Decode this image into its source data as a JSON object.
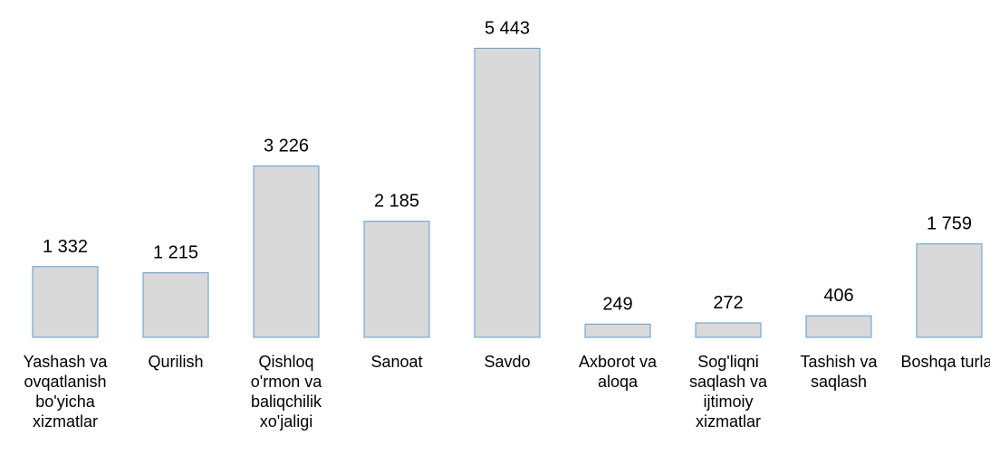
{
  "chart_data": {
    "type": "bar",
    "categories": [
      "Yashash va ovqatlanish bo'yicha xizmatlar",
      "Qurilish",
      "Qishloq o'rmon va baliqchilik xo'jaligi",
      "Sanoat",
      "Savdo",
      "Axborot va aloqa",
      "Sog'liqni saqlash va ijtimoiy xizmatlar",
      "Tashish va saqlash",
      "Boshqa turlar"
    ],
    "values": [
      1332,
      1215,
      3226,
      2185,
      5443,
      249,
      272,
      406,
      1759
    ],
    "value_labels": [
      "1 332",
      "1 215",
      "3 226",
      "2 185",
      "5 443",
      "249",
      "272",
      "406",
      "1 759"
    ],
    "color": "#d9d9d9",
    "edge_color": "#5b9bd5",
    "ylim": [
      0,
      5500
    ]
  }
}
